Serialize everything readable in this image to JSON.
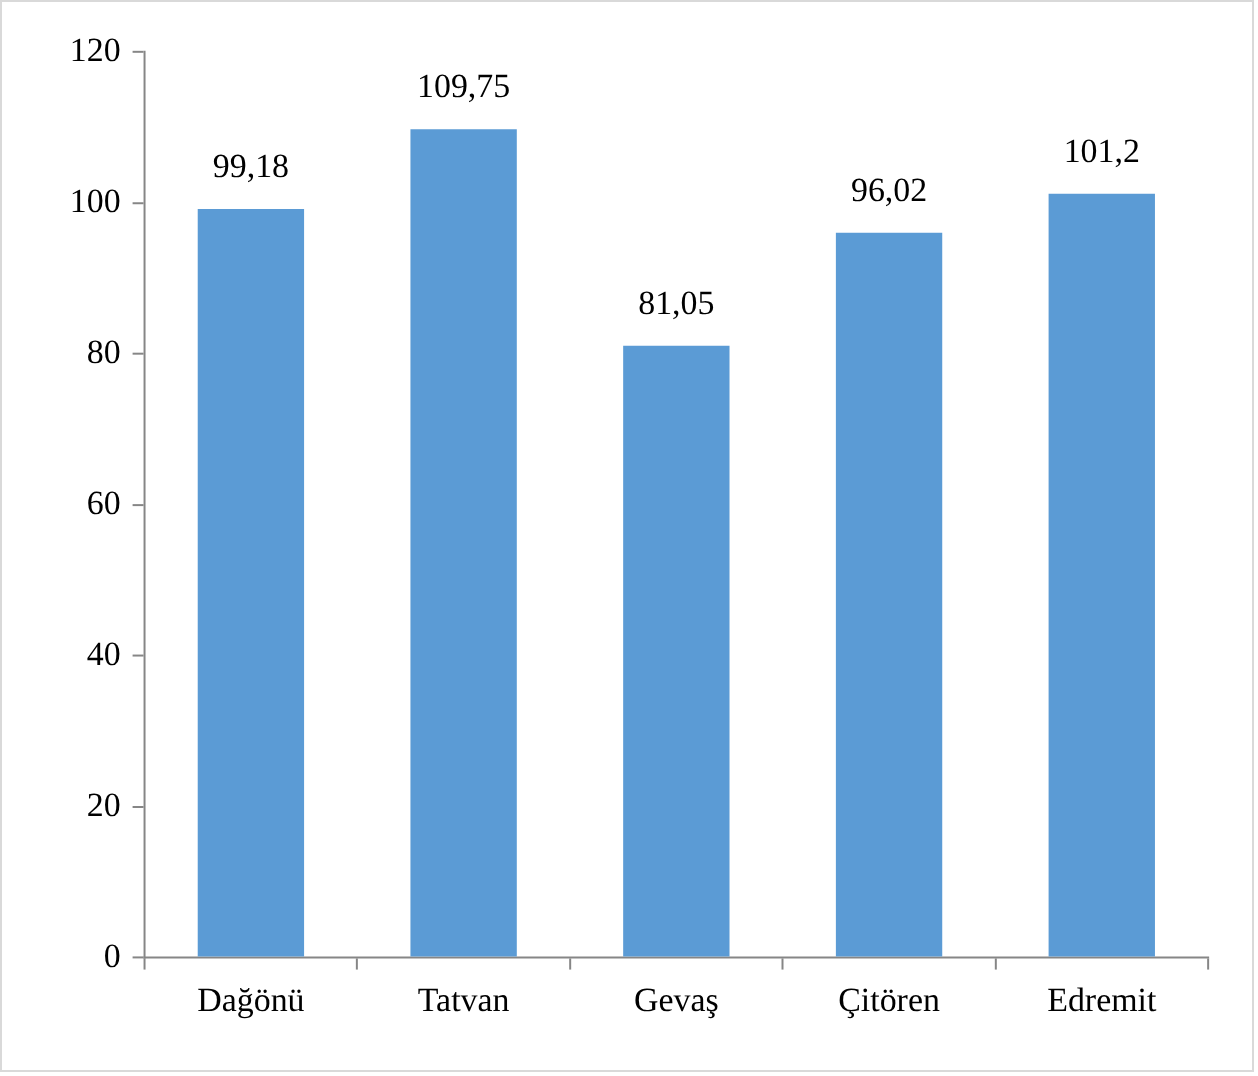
{
  "chart_data": {
    "type": "bar",
    "categories": [
      "Dağönü",
      "Tatvan",
      "Gevaş",
      "Çitören",
      "Edremit"
    ],
    "values": [
      99.18,
      109.75,
      81.05,
      96.02,
      101.2
    ],
    "color": "#5b9bd5",
    "value_labels": [
      "99,18",
      "109,75",
      "81,05",
      "96,02",
      "101,2"
    ],
    "ylim": [
      0,
      120
    ],
    "yticks": [
      0,
      20,
      40,
      60,
      80,
      100,
      120
    ],
    "grid": false,
    "legend": false
  }
}
